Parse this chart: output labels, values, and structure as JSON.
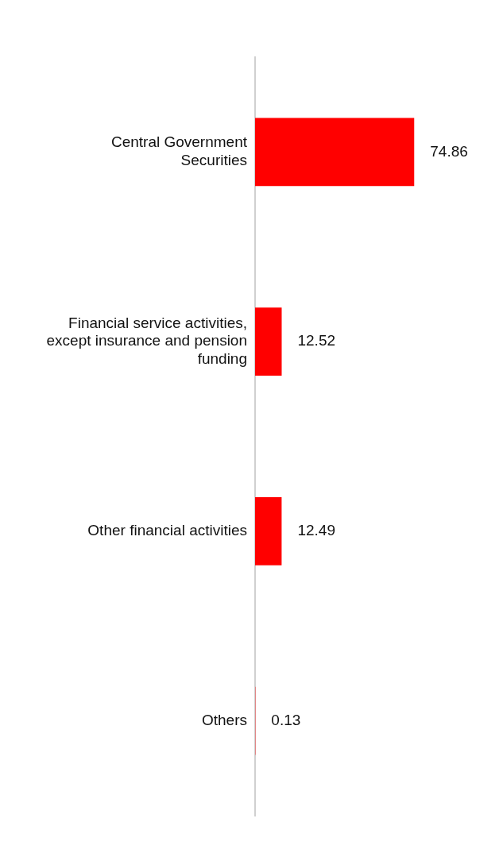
{
  "chart_data": {
    "type": "bar",
    "orientation": "horizontal",
    "categories": [
      "Central Government Securities",
      "Financial service activities, except insurance and pension funding",
      "Other financial activities",
      "Others"
    ],
    "values": [
      74.86,
      12.52,
      12.49,
      0.13
    ],
    "color": "#ff0000",
    "data_labels": true,
    "grid": false,
    "legend": false,
    "tick_labels": "y"
  }
}
